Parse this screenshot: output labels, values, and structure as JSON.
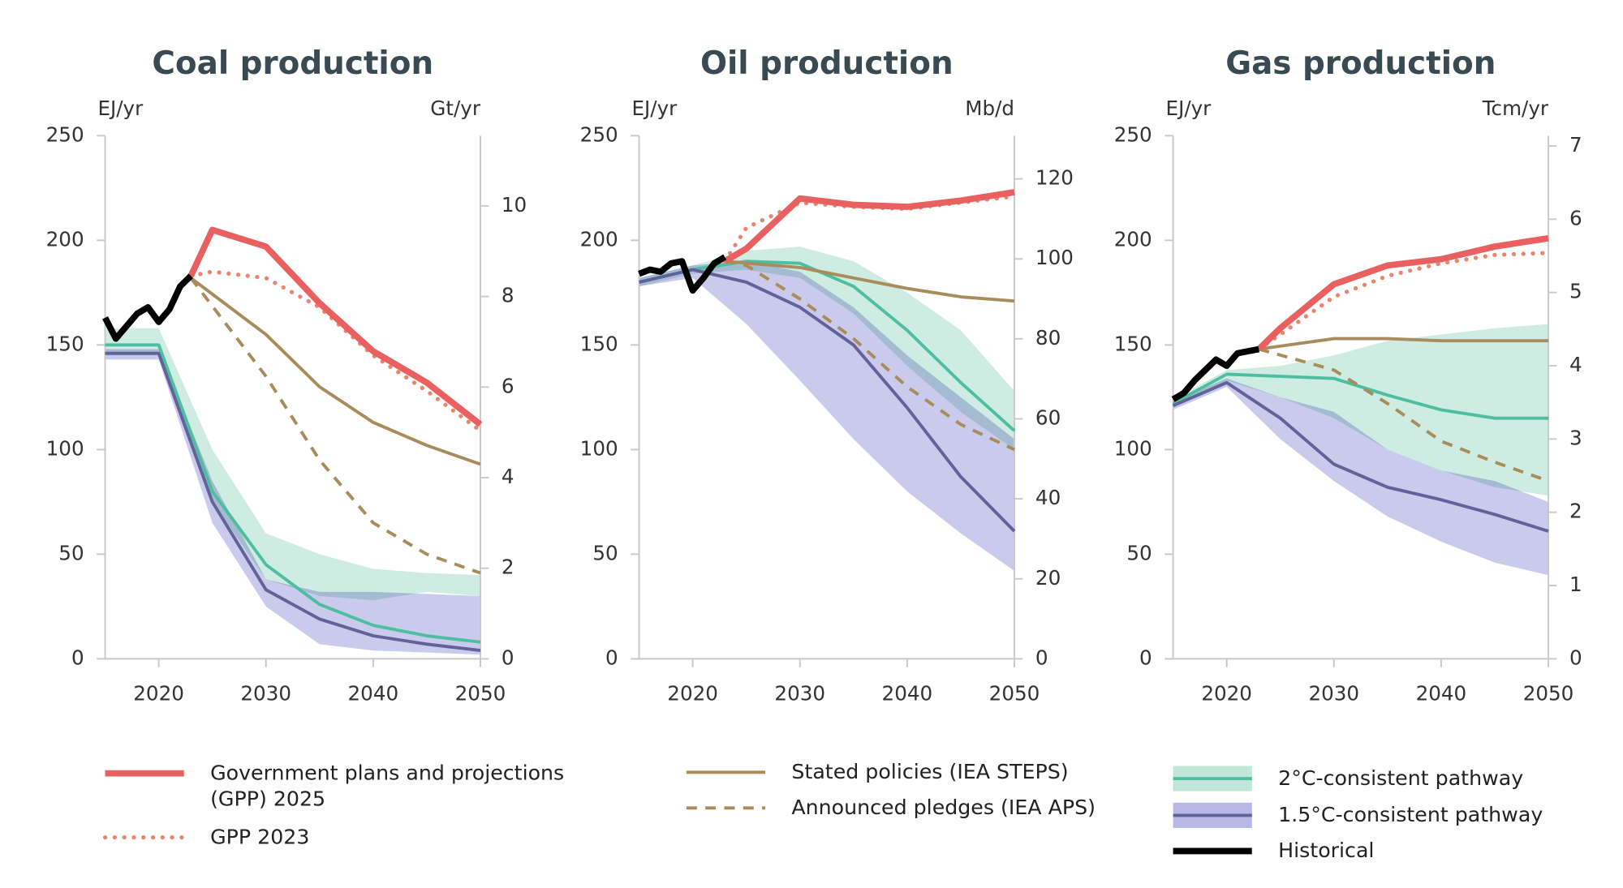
{
  "chart_data": [
    {
      "type": "line",
      "title": "Coal production",
      "y_label": "EJ/yr",
      "y2_label": "Gt/yr",
      "xlim": [
        2015,
        2050
      ],
      "xticks": [
        2020,
        2030,
        2040,
        2050
      ],
      "ylim": [
        0,
        250
      ],
      "yticks": [
        0,
        50,
        100,
        150,
        200,
        250
      ],
      "y2lim": [
        0,
        11.55
      ],
      "y2ticks": [
        0,
        2,
        4,
        6,
        8,
        10
      ],
      "series": [
        {
          "name": "2°C-consistent pathway",
          "color": "#4dbfa0",
          "band_color": "#bfe6d8",
          "style": "solid",
          "x": [
            2015,
            2020,
            2025,
            2030,
            2035,
            2040,
            2045,
            2050
          ],
          "values": [
            150,
            150,
            80,
            45,
            26,
            16,
            11,
            8
          ],
          "band": {
            "lower": [
              145,
              145,
              75,
              38,
              30,
              28,
              32,
              30
            ],
            "upper": [
              158,
              158,
              100,
              60,
              50,
              43,
              41,
              40
            ]
          }
        },
        {
          "name": "1.5°C-consistent pathway",
          "color": "#62629a",
          "band_color": "#b8b8e6",
          "style": "solid",
          "x": [
            2015,
            2020,
            2025,
            2030,
            2035,
            2040,
            2045,
            2050
          ],
          "values": [
            146,
            146,
            75,
            33,
            19,
            11,
            7,
            4
          ],
          "band": {
            "lower": [
              143,
              143,
              65,
              25,
              7,
              4,
              3,
              2
            ],
            "upper": [
              148,
              148,
              85,
              38,
              32,
              32,
              31,
              30
            ]
          }
        },
        {
          "name": "Stated policies (IEA STEPS)",
          "color": "#a88c5c",
          "style": "solid",
          "x": [
            2023,
            2030,
            2035,
            2040,
            2045,
            2050
          ],
          "values": [
            182,
            155,
            130,
            113,
            102,
            93
          ]
        },
        {
          "name": "Announced pledges (IEA APS)",
          "color": "#a88c5c",
          "style": "dashed",
          "x": [
            2023,
            2030,
            2035,
            2040,
            2045,
            2050
          ],
          "values": [
            182,
            135,
            95,
            65,
            50,
            41
          ]
        },
        {
          "name": "GPP 2023",
          "color": "#e8856c",
          "style": "dotted",
          "x": [
            2023,
            2025,
            2030,
            2035,
            2040,
            2045,
            2050
          ],
          "values": [
            183,
            185,
            182,
            168,
            145,
            128,
            109
          ]
        },
        {
          "name": "Government plans and  projections (GPP) 2025",
          "color": "#e8605f",
          "style": "thick",
          "x": [
            2023,
            2025,
            2030,
            2035,
            2040,
            2045,
            2050
          ],
          "values": [
            183,
            205,
            197,
            170,
            147,
            132,
            112
          ]
        },
        {
          "name": "Historical",
          "color": "#000000",
          "style": "thick",
          "x": [
            2015,
            2016,
            2017,
            2018,
            2019,
            2020,
            2021,
            2022,
            2023
          ],
          "values": [
            163,
            153,
            159,
            165,
            168,
            161,
            167,
            178,
            183
          ]
        }
      ]
    },
    {
      "type": "line",
      "title": "Oil production",
      "y_label": "EJ/yr",
      "y2_label": "Mb/d",
      "xlim": [
        2015,
        2050
      ],
      "xticks": [
        2020,
        2030,
        2040,
        2050
      ],
      "ylim": [
        0,
        250
      ],
      "yticks": [
        0,
        50,
        100,
        150,
        200,
        250
      ],
      "y2lim": [
        0,
        130.8
      ],
      "y2ticks": [
        0,
        20,
        40,
        60,
        80,
        100,
        120
      ],
      "series": [
        {
          "color": "#4dbfa0",
          "band_color": "#bfe6d8",
          "style": "solid",
          "x": [
            2015,
            2020,
            2025,
            2030,
            2035,
            2040,
            2045,
            2050
          ],
          "values": [
            180,
            186,
            190,
            189,
            178,
            157,
            132,
            109
          ],
          "band": {
            "lower": [
              178,
              184,
              186,
              182,
              165,
              140,
              118,
              100
            ],
            "upper": [
              182,
              188,
              195,
              197,
              190,
              175,
              157,
              128
            ]
          }
        },
        {
          "color": "#62629a",
          "band_color": "#b8b8e6",
          "style": "solid",
          "x": [
            2015,
            2020,
            2025,
            2030,
            2035,
            2040,
            2045,
            2050
          ],
          "values": [
            180,
            186,
            180,
            168,
            150,
            120,
            87,
            61
          ],
          "band": {
            "lower": [
              178,
              182,
              160,
              133,
              105,
              80,
              60,
              42
            ],
            "upper": [
              182,
              188,
              190,
              185,
              168,
              145,
              125,
              105
            ]
          }
        },
        {
          "color": "#a88c5c",
          "style": "solid",
          "x": [
            2023,
            2030,
            2035,
            2040,
            2045,
            2050
          ],
          "values": [
            190,
            187,
            182,
            177,
            173,
            171
          ]
        },
        {
          "color": "#a88c5c",
          "style": "dashed",
          "x": [
            2023,
            2025,
            2030,
            2035,
            2040,
            2045,
            2050
          ],
          "values": [
            190,
            188,
            172,
            153,
            130,
            112,
            100
          ]
        },
        {
          "color": "#e8856c",
          "style": "dotted",
          "x": [
            2023,
            2025,
            2030,
            2035,
            2040,
            2045,
            2050
          ],
          "values": [
            190,
            206,
            218,
            216,
            215,
            218,
            221
          ]
        },
        {
          "color": "#e8605f",
          "style": "thick",
          "x": [
            2023,
            2025,
            2030,
            2035,
            2040,
            2045,
            2050
          ],
          "values": [
            190,
            196,
            220,
            217,
            216,
            219,
            223
          ]
        },
        {
          "color": "#000000",
          "style": "thick",
          "x": [
            2015,
            2016,
            2017,
            2018,
            2019,
            2020,
            2021,
            2022,
            2023
          ],
          "values": [
            184,
            186,
            185,
            189,
            190,
            176,
            182,
            189,
            192
          ]
        }
      ]
    },
    {
      "type": "line",
      "title": "Gas production",
      "y_label": "EJ/yr",
      "y2_label": "Tcm/yr",
      "xlim": [
        2015,
        2050
      ],
      "xticks": [
        2020,
        2030,
        2040,
        2050
      ],
      "ylim": [
        0,
        250
      ],
      "yticks": [
        0,
        50,
        100,
        150,
        200,
        250
      ],
      "y2lim": [
        0,
        7.14
      ],
      "y2ticks": [
        0,
        1,
        2,
        3,
        4,
        5,
        6,
        7
      ],
      "series": [
        {
          "color": "#4dbfa0",
          "band_color": "#bfe6d8",
          "style": "solid",
          "x": [
            2015,
            2020,
            2025,
            2030,
            2035,
            2040,
            2045,
            2050
          ],
          "values": [
            122,
            136,
            135,
            134,
            126,
            119,
            115,
            115
          ],
          "band": {
            "lower": [
              120,
              133,
              125,
              115,
              100,
              90,
              82,
              78
            ],
            "upper": [
              124,
              138,
              140,
              145,
              152,
              155,
              158,
              160
            ]
          }
        },
        {
          "color": "#62629a",
          "band_color": "#b8b8e6",
          "style": "solid",
          "x": [
            2015,
            2020,
            2025,
            2030,
            2035,
            2040,
            2045,
            2050
          ],
          "values": [
            121,
            132,
            115,
            93,
            82,
            76,
            69,
            61
          ],
          "band": {
            "lower": [
              119,
              130,
              105,
              85,
              68,
              56,
              46,
              40
            ],
            "upper": [
              123,
              134,
              125,
              118,
              100,
              90,
              85,
              75
            ]
          }
        },
        {
          "color": "#a88c5c",
          "style": "solid",
          "x": [
            2023,
            2030,
            2035,
            2040,
            2045,
            2050
          ],
          "values": [
            148,
            153,
            153,
            152,
            152,
            152
          ]
        },
        {
          "color": "#a88c5c",
          "style": "dashed",
          "x": [
            2023,
            2030,
            2035,
            2040,
            2045,
            2050
          ],
          "values": [
            148,
            138,
            122,
            104,
            94,
            85
          ]
        },
        {
          "color": "#e8856c",
          "style": "dotted",
          "x": [
            2023,
            2025,
            2030,
            2035,
            2040,
            2045,
            2050
          ],
          "values": [
            148,
            155,
            173,
            183,
            189,
            193,
            194
          ]
        },
        {
          "color": "#e8605f",
          "style": "thick",
          "x": [
            2023,
            2025,
            2030,
            2035,
            2040,
            2045,
            2050
          ],
          "values": [
            148,
            158,
            179,
            188,
            191,
            197,
            201
          ]
        },
        {
          "color": "#000000",
          "style": "thick",
          "x": [
            2015,
            2016,
            2017,
            2018,
            2019,
            2020,
            2021,
            2022,
            2023
          ],
          "values": [
            124,
            127,
            133,
            138,
            143,
            140,
            146,
            147,
            148
          ]
        }
      ]
    }
  ]
}
